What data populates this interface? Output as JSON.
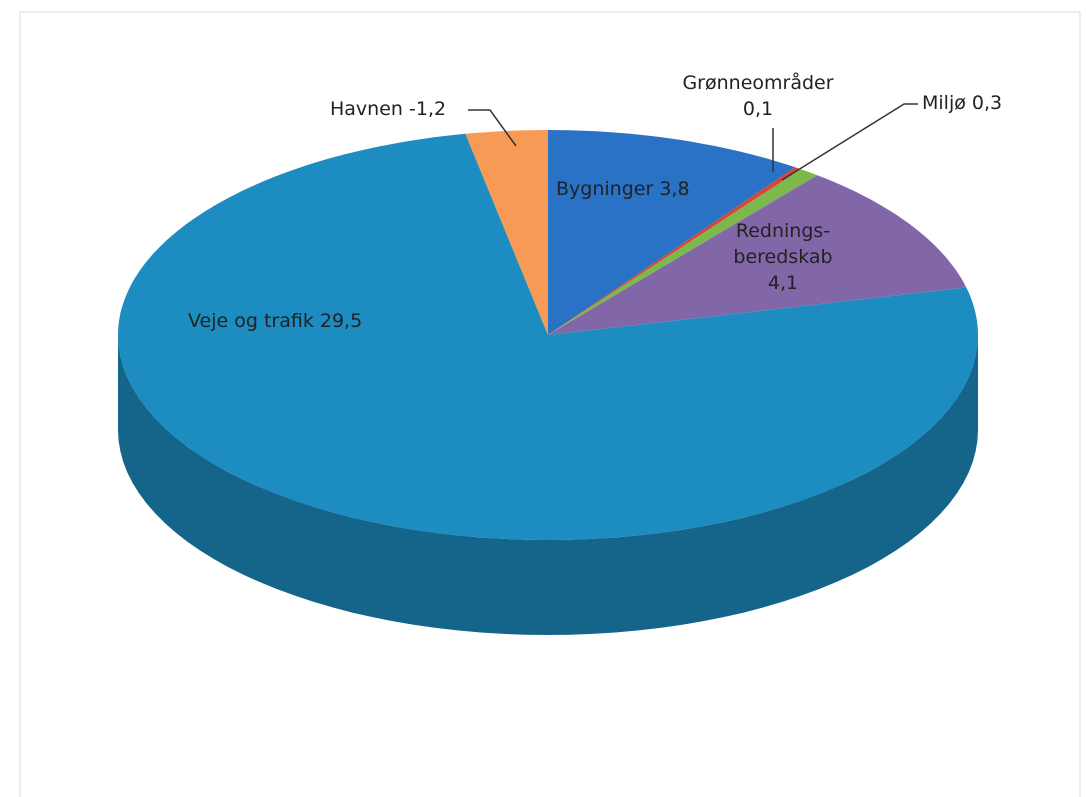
{
  "chart_data": {
    "type": "pie3d",
    "categories": [
      "Bygninger",
      "Grønneområder",
      "Miljø",
      "Rednings-beredskab",
      "Veje og trafik",
      "Havnen"
    ],
    "values": [
      3.8,
      0.1,
      0.3,
      4.1,
      29.5,
      -1.2
    ],
    "value_labels": [
      "3,8",
      "0,1",
      "0,3",
      "4,1",
      "29,5",
      "-1,2"
    ],
    "colors": [
      "#2a72c6",
      "#d9443a",
      "#7cb84c",
      "#8267a8",
      "#1d8cc0",
      "#f79a55"
    ]
  }
}
